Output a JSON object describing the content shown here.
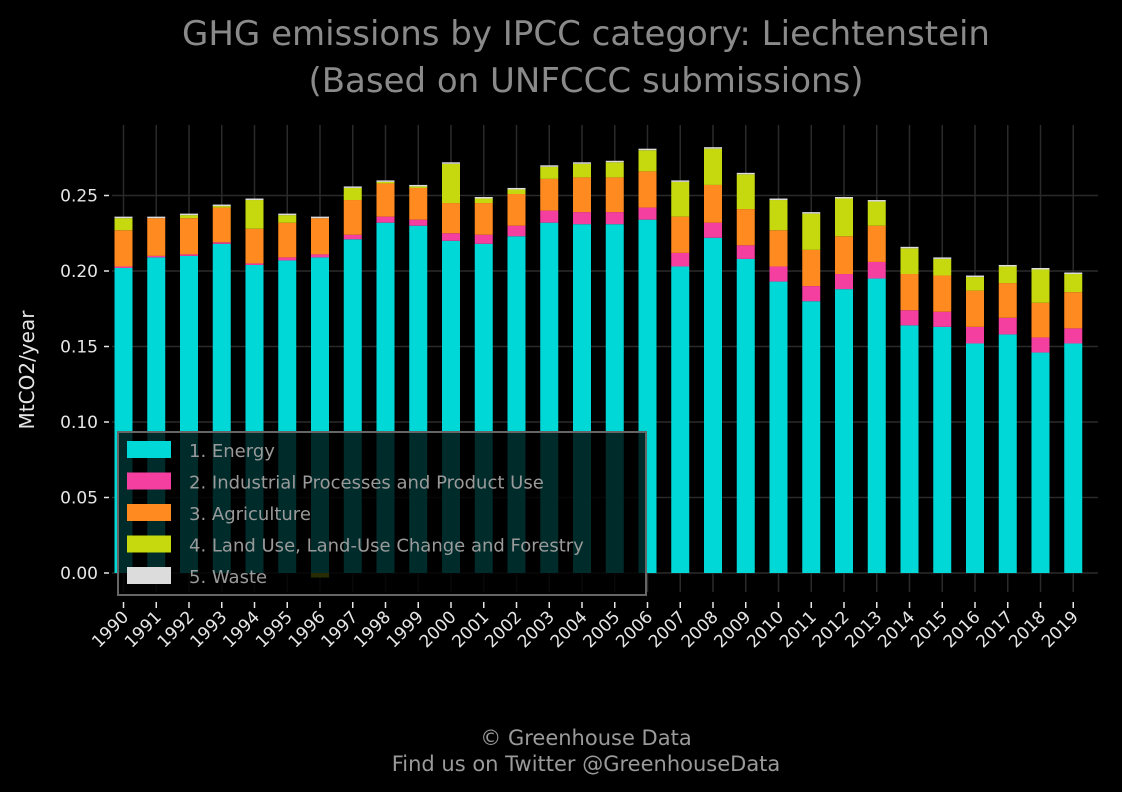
{
  "colors": {
    "background": "#000000",
    "grid": "#2a2a2a",
    "text": "#e6e6e6",
    "title": "#8a8a8a"
  },
  "chart_data": {
    "type": "bar",
    "stacked": true,
    "title_line1": "GHG emissions by IPCC category: Liechtenstein",
    "title_line2": "(Based on UNFCCC submissions)",
    "xlabel": "",
    "ylabel": "MtCO2/year",
    "ylim": [
      -0.003,
      0.29
    ],
    "yticks": [
      "0.00",
      "0.05",
      "0.10",
      "0.15",
      "0.20",
      "0.25"
    ],
    "grid": true,
    "legend_position": "lower-left",
    "categories": [
      "1990",
      "1991",
      "1992",
      "1993",
      "1994",
      "1995",
      "1996",
      "1997",
      "1998",
      "1999",
      "2000",
      "2001",
      "2002",
      "2003",
      "2004",
      "2005",
      "2006",
      "2007",
      "2008",
      "2009",
      "2010",
      "2011",
      "2012",
      "2013",
      "2014",
      "2015",
      "2016",
      "2017",
      "2018",
      "2019"
    ],
    "series": [
      {
        "name": "1. Energy",
        "color": "#00d7d7",
        "values": [
          0.202,
          0.209,
          0.21,
          0.218,
          0.204,
          0.207,
          0.209,
          0.221,
          0.232,
          0.23,
          0.22,
          0.218,
          0.223,
          0.232,
          0.231,
          0.231,
          0.234,
          0.203,
          0.222,
          0.208,
          0.193,
          0.18,
          0.188,
          0.195,
          0.164,
          0.163,
          0.152,
          0.158,
          0.146,
          0.152
        ]
      },
      {
        "name": "2. Industrial Processes and Product Use",
        "color": "#f43ea0",
        "values": [
          0.001,
          0.001,
          0.001,
          0.001,
          0.001,
          0.002,
          0.002,
          0.003,
          0.004,
          0.004,
          0.005,
          0.006,
          0.007,
          0.008,
          0.008,
          0.008,
          0.008,
          0.009,
          0.01,
          0.009,
          0.01,
          0.01,
          0.01,
          0.011,
          0.01,
          0.01,
          0.011,
          0.011,
          0.01,
          0.01
        ]
      },
      {
        "name": "3. Agriculture",
        "color": "#ff8a20",
        "values": [
          0.024,
          0.025,
          0.024,
          0.023,
          0.023,
          0.023,
          0.024,
          0.023,
          0.022,
          0.021,
          0.02,
          0.021,
          0.021,
          0.021,
          0.023,
          0.023,
          0.024,
          0.024,
          0.025,
          0.024,
          0.024,
          0.024,
          0.025,
          0.024,
          0.024,
          0.024,
          0.024,
          0.023,
          0.023,
          0.024
        ]
      },
      {
        "name": "4. Land Use, Land-Use Change and Forestry",
        "color": "#c5d90e",
        "values": [
          0.008,
          0.0,
          0.002,
          0.001,
          0.019,
          0.005,
          -0.003,
          0.008,
          0.001,
          0.001,
          0.026,
          0.003,
          0.003,
          0.008,
          0.009,
          0.01,
          0.014,
          0.023,
          0.024,
          0.023,
          0.02,
          0.024,
          0.025,
          0.016,
          0.017,
          0.011,
          0.009,
          0.011,
          0.022,
          0.012
        ]
      },
      {
        "name": "5. Waste",
        "color": "#dcdcdc",
        "values": [
          0.001,
          0.001,
          0.001,
          0.001,
          0.001,
          0.001,
          0.001,
          0.001,
          0.001,
          0.001,
          0.001,
          0.001,
          0.001,
          0.001,
          0.001,
          0.001,
          0.001,
          0.001,
          0.001,
          0.001,
          0.001,
          0.001,
          0.001,
          0.001,
          0.001,
          0.001,
          0.001,
          0.001,
          0.001,
          0.001
        ]
      }
    ]
  },
  "footer": {
    "line1": "© Greenhouse Data",
    "line2": "Find us on Twitter @GreenhouseData"
  }
}
